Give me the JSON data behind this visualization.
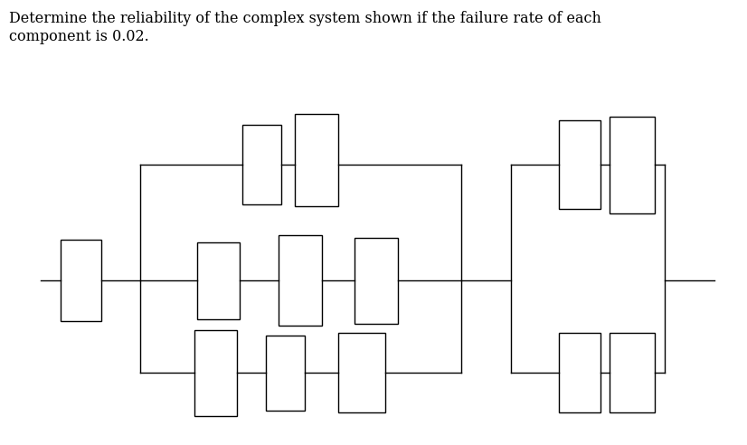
{
  "title_text": "Determine the reliability of the complex system shown if the failure rate of each\ncomponent is 0.02.",
  "bg_color": "#ffffff",
  "line_color": "#000000",
  "box_edge_color": "#000000",
  "fig_width": 8.26,
  "fig_height": 4.92,
  "dpi": 100
}
